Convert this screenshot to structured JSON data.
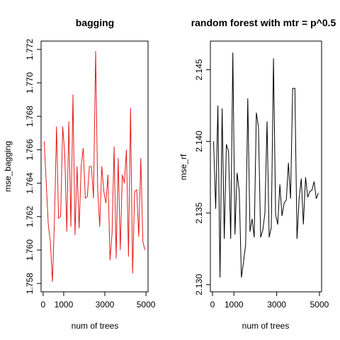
{
  "chart_data": [
    {
      "type": "line",
      "title": "bagging",
      "xlabel": "num of trees",
      "ylabel": "mse_bagging",
      "color": "#e41a1c",
      "xlim": [
        -100,
        5100
      ],
      "ylim": [
        1.7575,
        1.7725
      ],
      "xticks": [
        0,
        1000,
        3000,
        5000
      ],
      "xtick_labels": [
        "0",
        "1000",
        "3000",
        "5000"
      ],
      "yticks": [
        1.758,
        1.76,
        1.762,
        1.764,
        1.766,
        1.768,
        1.77,
        1.772
      ],
      "ytick_labels": [
        "1.758",
        "1.760",
        "1.762",
        "1.764",
        "1.766",
        "1.768",
        "1.770",
        "1.772"
      ],
      "x": [
        50,
        150,
        250,
        350,
        450,
        550,
        650,
        750,
        850,
        950,
        1050,
        1150,
        1250,
        1350,
        1450,
        1550,
        1650,
        1750,
        1850,
        1950,
        2050,
        2150,
        2250,
        2350,
        2450,
        2550,
        2650,
        2750,
        2850,
        2950,
        3050,
        3150,
        3250,
        3350,
        3450,
        3550,
        3650,
        3750,
        3850,
        3950,
        4050,
        4150,
        4250,
        4350,
        4450,
        4550,
        4650,
        4750,
        4850,
        4950
      ],
      "y": [
        1.7665,
        1.764,
        1.7615,
        1.7605,
        1.7581,
        1.7618,
        1.7674,
        1.7619,
        1.762,
        1.7674,
        1.7658,
        1.7611,
        1.7677,
        1.7614,
        1.7693,
        1.7609,
        1.765,
        1.7613,
        1.765,
        1.7661,
        1.7631,
        1.7632,
        1.765,
        1.765,
        1.7631,
        1.7719,
        1.7636,
        1.7614,
        1.765,
        1.7635,
        1.7628,
        1.7645,
        1.7594,
        1.761,
        1.7662,
        1.7595,
        1.7655,
        1.76,
        1.7645,
        1.764,
        1.766,
        1.7596,
        1.7685,
        1.7586,
        1.7635,
        1.7636,
        1.7608,
        1.7655,
        1.7605,
        1.76
      ]
    },
    {
      "type": "line",
      "title": "random forest with mtr = p^0.5",
      "xlabel": "num of trees",
      "ylabel": "mse_rf",
      "color": "#000000",
      "xlim": [
        -100,
        5100
      ],
      "ylim": [
        2.1295,
        2.147
      ],
      "xticks": [
        0,
        1000,
        3000,
        5000
      ],
      "xtick_labels": [
        "0",
        "1000",
        "3000",
        "5000"
      ],
      "yticks": [
        2.13,
        2.135,
        2.14,
        2.145
      ],
      "ytick_labels": [
        "2.130",
        "2.135",
        "2.140",
        "2.145"
      ],
      "x": [
        50,
        150,
        250,
        350,
        450,
        550,
        650,
        750,
        850,
        950,
        1050,
        1150,
        1250,
        1350,
        1450,
        1550,
        1650,
        1750,
        1850,
        1950,
        2050,
        2150,
        2250,
        2350,
        2450,
        2550,
        2650,
        2750,
        2850,
        2950,
        3050,
        3150,
        3250,
        3350,
        3450,
        3550,
        3650,
        3750,
        3850,
        3950,
        4050,
        4150,
        4250,
        4350,
        4450,
        4550,
        4650,
        4750,
        4850,
        4950
      ],
      "y": [
        2.14,
        2.1353,
        2.1425,
        2.1305,
        2.1423,
        2.1332,
        2.1398,
        2.1393,
        2.1332,
        2.1462,
        2.1335,
        2.1378,
        2.1365,
        2.1305,
        2.1316,
        2.1328,
        2.143,
        2.1337,
        2.1346,
        2.1333,
        2.142,
        2.141,
        2.1333,
        2.1338,
        2.135,
        2.1414,
        2.1333,
        2.134,
        2.1458,
        2.1349,
        2.1342,
        2.137,
        2.1348,
        2.1357,
        2.1359,
        2.1385,
        2.136,
        2.1437,
        2.1437,
        2.1332,
        2.136,
        2.1374,
        2.1342,
        2.1375,
        2.1361,
        2.1365,
        2.1366,
        2.1372,
        2.136,
        2.1364
      ]
    }
  ]
}
